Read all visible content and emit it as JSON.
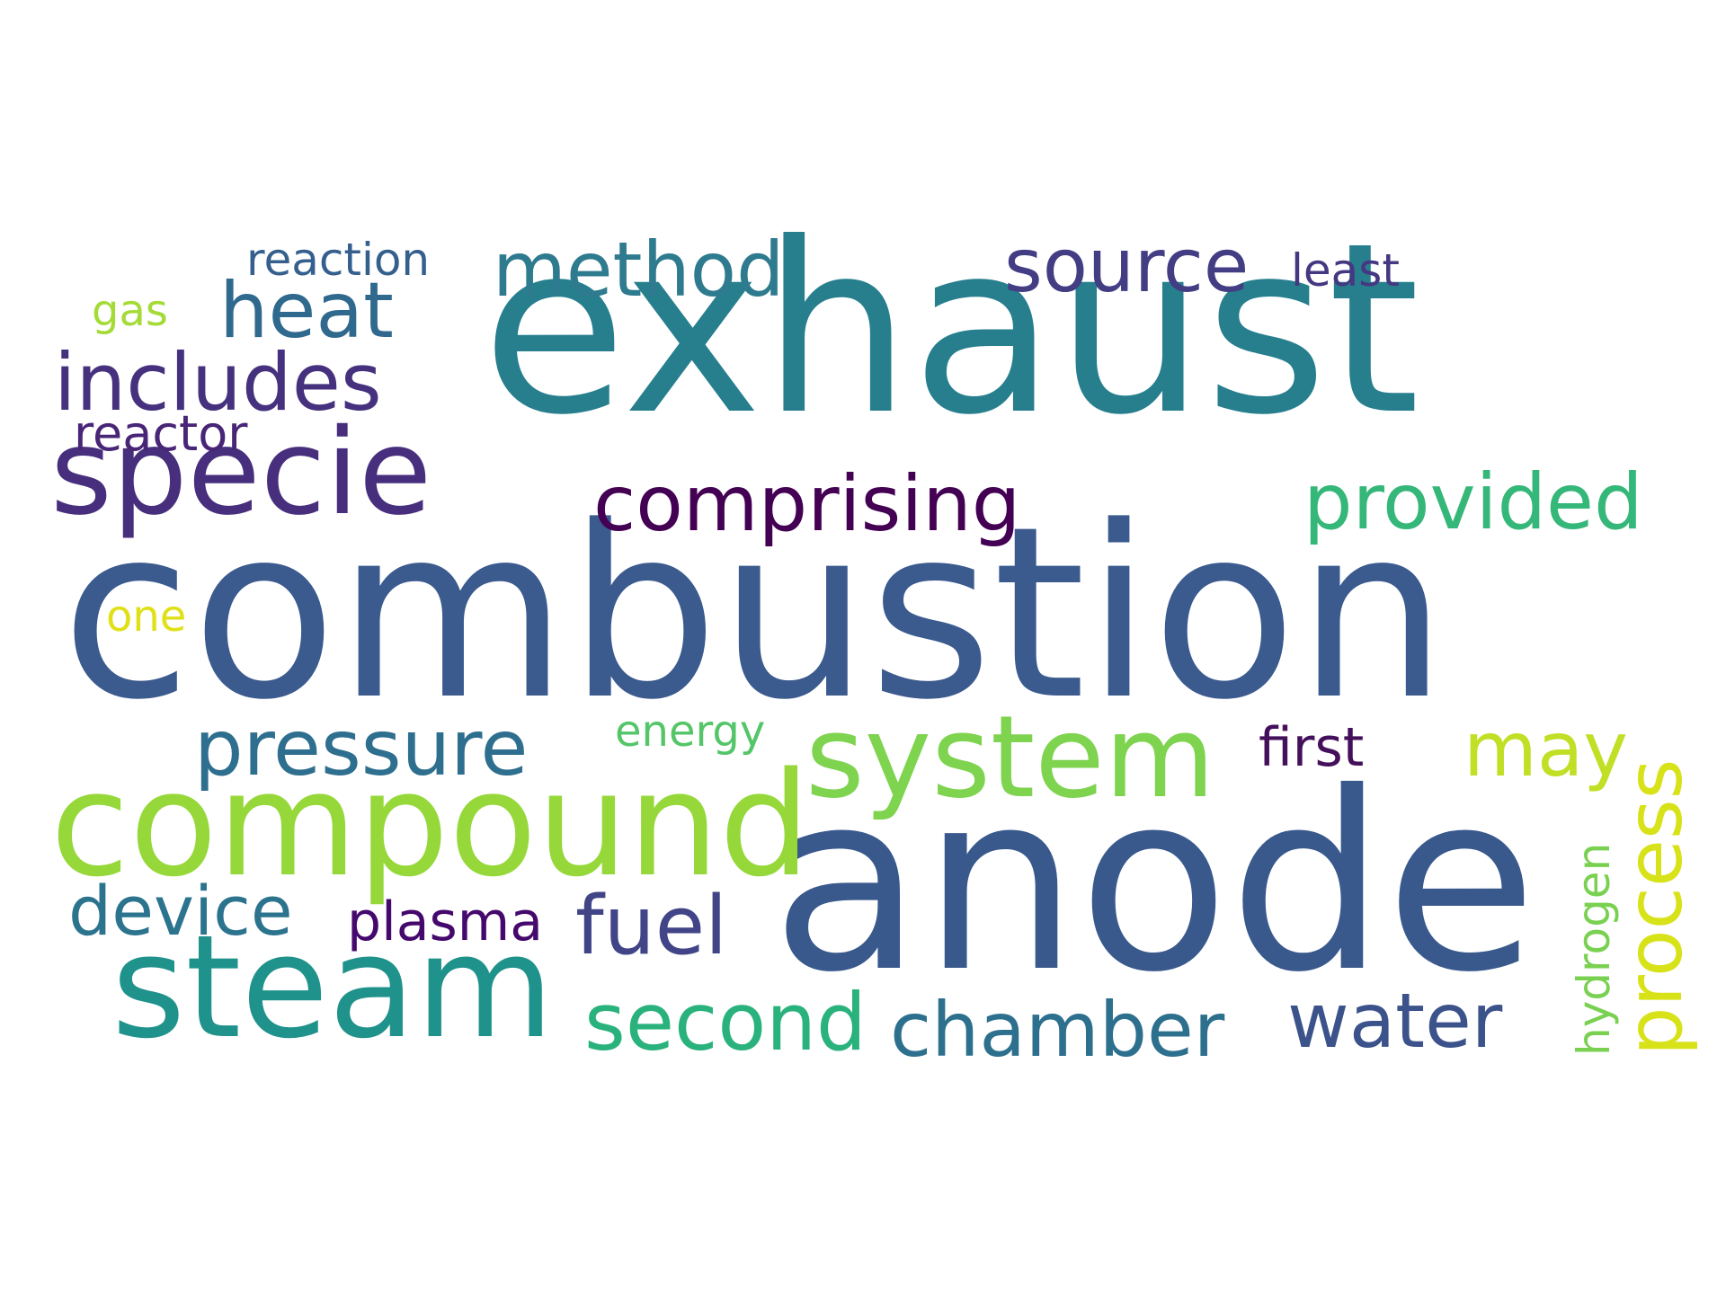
{
  "words": {
    "combustion": "combustion",
    "exhaust": "exhaust",
    "anode": "anode",
    "compound": "compound",
    "steam": "steam",
    "specie": "specie",
    "system": "system",
    "includes": "includes",
    "heat": "heat",
    "method": "method",
    "source": "source",
    "least": "least",
    "reaction": "reaction",
    "gas": "gas",
    "reactor": "reactor",
    "comprising": "comprising",
    "provided": "provided",
    "one": "one",
    "pressure": "pressure",
    "energy": "energy",
    "first": "first",
    "may": "may",
    "process": "process",
    "hydrogen": "hydrogen",
    "device": "device",
    "plasma": "plasma",
    "fuel": "fuel",
    "second": "second",
    "chamber": "chamber",
    "water": "water"
  },
  "palette": {
    "background": "#ffffff",
    "combustion": "#3b5a8e",
    "exhaust": "#277f8e",
    "anode": "#39598d",
    "compound": "#96d83a",
    "steam": "#1f928b",
    "specie": "#472f7d",
    "system": "#7ed34f"
  }
}
